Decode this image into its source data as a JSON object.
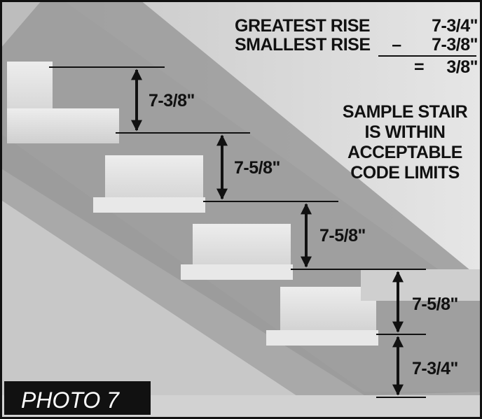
{
  "summary": {
    "greatest": {
      "label": "GREATEST RISE",
      "value": "7-3/4\""
    },
    "smallest": {
      "label": "SMALLEST RISE",
      "operator": "–",
      "value": "7-3/8\""
    },
    "difference": {
      "operator": "=",
      "value": "3/8\""
    }
  },
  "risers": [
    "7-3/8\"",
    "7-5/8\"",
    "7-5/8\"",
    "7-5/8\"",
    "7-3/4\""
  ],
  "note": [
    "SAMPLE STAIR",
    "IS WITHIN",
    "ACCEPTABLE",
    "CODE LIMITS"
  ],
  "caption": "PHOTO 7"
}
